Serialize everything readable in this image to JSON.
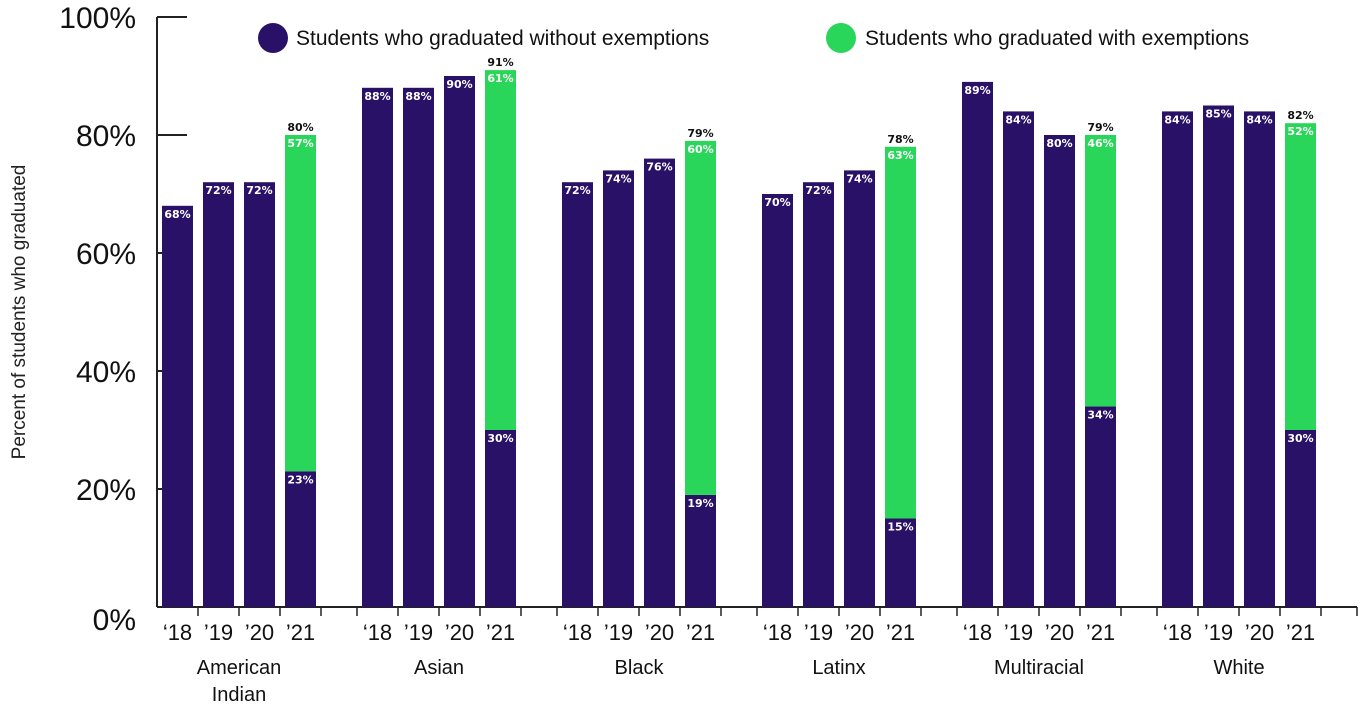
{
  "chart_data": {
    "type": "bar",
    "stacked": true,
    "ylabel": "Percent of students who graduated",
    "ylim": [
      0,
      100
    ],
    "yticks": [
      "0%",
      "20%",
      "40%",
      "60%",
      "80%",
      "100%"
    ],
    "legend_position": "top",
    "series": [
      {
        "name": "Students who graduated without exemptions",
        "color": "#2a1168"
      },
      {
        "name": "Students who graduated with exemptions",
        "color": "#29d65a"
      }
    ],
    "groups": [
      {
        "label": "American Indian",
        "label_lines": [
          "American",
          "Indian"
        ],
        "bars": [
          {
            "year": "‘18",
            "without": 68,
            "without_label": "68%"
          },
          {
            "year": "’19",
            "without": 72,
            "without_label": "72%"
          },
          {
            "year": "’20",
            "without": 72,
            "without_label": "72%"
          },
          {
            "year": "’21",
            "without": 23,
            "without_label": "23%",
            "with": 57,
            "with_label": "57%",
            "total_label": "80%"
          }
        ]
      },
      {
        "label": "Asian",
        "label_lines": [
          "Asian"
        ],
        "bars": [
          {
            "year": "‘18",
            "without": 88,
            "without_label": "88%"
          },
          {
            "year": "’19",
            "without": 88,
            "without_label": "88%"
          },
          {
            "year": "’20",
            "without": 90,
            "without_label": "90%"
          },
          {
            "year": "’21",
            "without": 30,
            "without_label": "30%",
            "with": 61,
            "with_label": "61%",
            "total_label": "91%"
          }
        ]
      },
      {
        "label": "Black",
        "label_lines": [
          "Black"
        ],
        "bars": [
          {
            "year": "‘18",
            "without": 72,
            "without_label": "72%"
          },
          {
            "year": "’19",
            "without": 74,
            "without_label": "74%"
          },
          {
            "year": "’20",
            "without": 76,
            "without_label": "76%"
          },
          {
            "year": "’21",
            "without": 19,
            "without_label": "19%",
            "with": 60,
            "with_label": "60%",
            "total_label": "79%"
          }
        ]
      },
      {
        "label": "Latinx",
        "label_lines": [
          "Latinx"
        ],
        "bars": [
          {
            "year": "‘18",
            "without": 70,
            "without_label": "70%"
          },
          {
            "year": "’19",
            "without": 72,
            "without_label": "72%"
          },
          {
            "year": "’20",
            "without": 74,
            "without_label": "74%"
          },
          {
            "year": "’21",
            "without": 15,
            "without_label": "15%",
            "with": 63,
            "with_label": "63%",
            "total_label": "78%"
          }
        ]
      },
      {
        "label": "Multiracial",
        "label_lines": [
          "Multiracial"
        ],
        "bars": [
          {
            "year": "‘18",
            "without": 89,
            "without_label": "89%"
          },
          {
            "year": "’19",
            "without": 84,
            "without_label": "84%"
          },
          {
            "year": "’20",
            "without": 80,
            "without_label": "80%"
          },
          {
            "year": "’21",
            "without": 34,
            "without_label": "34%",
            "with": 46,
            "with_label": "46%",
            "total_label": "79%"
          }
        ]
      },
      {
        "label": "White",
        "label_lines": [
          "White"
        ],
        "bars": [
          {
            "year": "‘18",
            "without": 84,
            "without_label": "84%"
          },
          {
            "year": "’19",
            "without": 85,
            "without_label": "85%"
          },
          {
            "year": "’20",
            "without": 84,
            "without_label": "84%"
          },
          {
            "year": "’21",
            "without": 30,
            "without_label": "30%",
            "with": 52,
            "with_label": "52%",
            "total_label": "82%"
          }
        ]
      }
    ]
  }
}
